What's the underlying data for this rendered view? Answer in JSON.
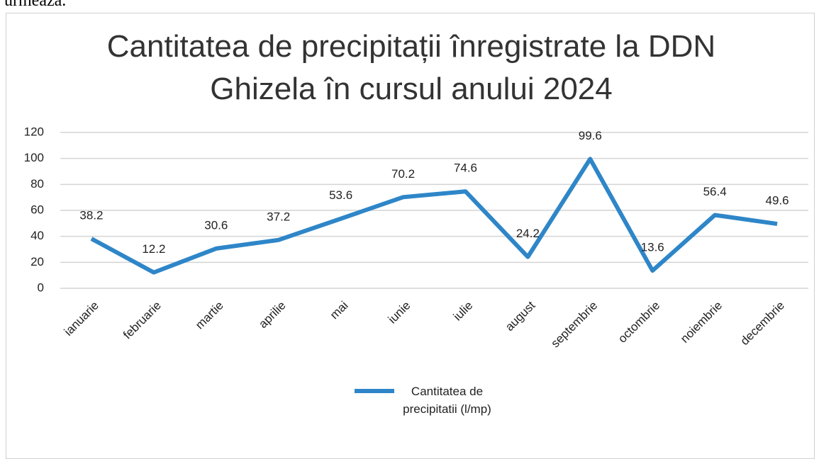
{
  "page_text": "urmează.",
  "chart_data": {
    "type": "line",
    "title": "Cantitatea de precipitații înregistrate la DDN Ghizela în cursul anului 2024",
    "categories": [
      "ianuarie",
      "februarie",
      "martie",
      "aprilie",
      "mai",
      "iunie",
      "iulie",
      "august",
      "septembrie",
      "octombrie",
      "noiembrie",
      "decembrie"
    ],
    "series": [
      {
        "name": "Cantitatea de precipitatii (l/mp)",
        "color": "#2e86c8",
        "values": [
          38.2,
          12.2,
          30.6,
          37.2,
          53.6,
          70.2,
          74.6,
          24.2,
          99.6,
          13.6,
          56.4,
          49.6
        ]
      }
    ],
    "ylim": [
      0,
      120
    ],
    "yticks": [
      0,
      20,
      40,
      60,
      80,
      100,
      120
    ],
    "grid": true,
    "legend": "bottom"
  }
}
